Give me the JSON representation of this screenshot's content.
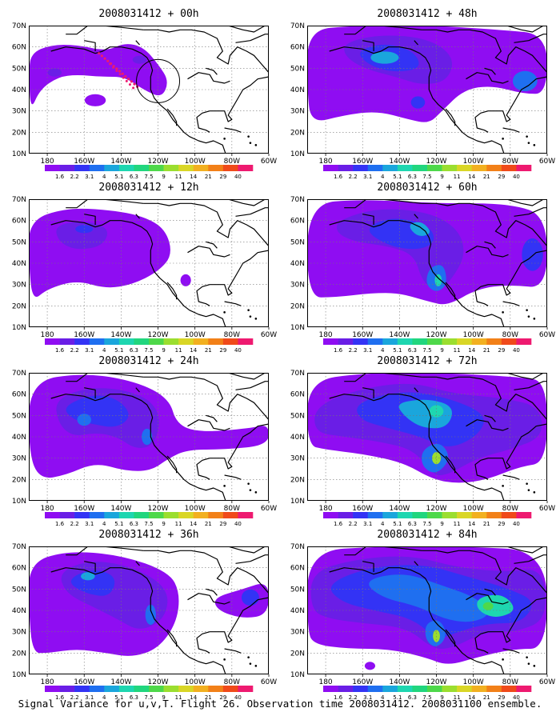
{
  "figure": {
    "footer": "Signal Variance for u,v,T. Flight 26. Observation time 2008031412. 2008031100 ensemble."
  },
  "axes": {
    "lat_labels": [
      "70N",
      "60N",
      "50N",
      "40N",
      "30N",
      "20N",
      "10N"
    ],
    "lon_labels": [
      "180",
      "160W",
      "140W",
      "120W",
      "100W",
      "80W",
      "60W"
    ]
  },
  "colorbar": {
    "levels": [
      "1.6",
      "2.2",
      "3.1",
      "4",
      "5.1",
      "6.3",
      "7.5",
      "9",
      "11",
      "14",
      "21",
      "29",
      "40"
    ],
    "colors": [
      "#8f0df2",
      "#6a1ee6",
      "#3333f5",
      "#1f6ff0",
      "#1aa6dc",
      "#1ed6b0",
      "#21d67e",
      "#4ed84a",
      "#9bde2f",
      "#d9d626",
      "#f2b020",
      "#f28018",
      "#f04a1a",
      "#ee1a70"
    ]
  },
  "panels": [
    {
      "title": "2008031412 + 00h"
    },
    {
      "title": "2008031412 + 48h"
    },
    {
      "title": "2008031412 + 12h"
    },
    {
      "title": "2008031412 + 60h"
    },
    {
      "title": "2008031412 + 24h"
    },
    {
      "title": "2008031412 + 72h"
    },
    {
      "title": "2008031412 + 36h"
    },
    {
      "title": "2008031412 + 84h"
    }
  ]
}
